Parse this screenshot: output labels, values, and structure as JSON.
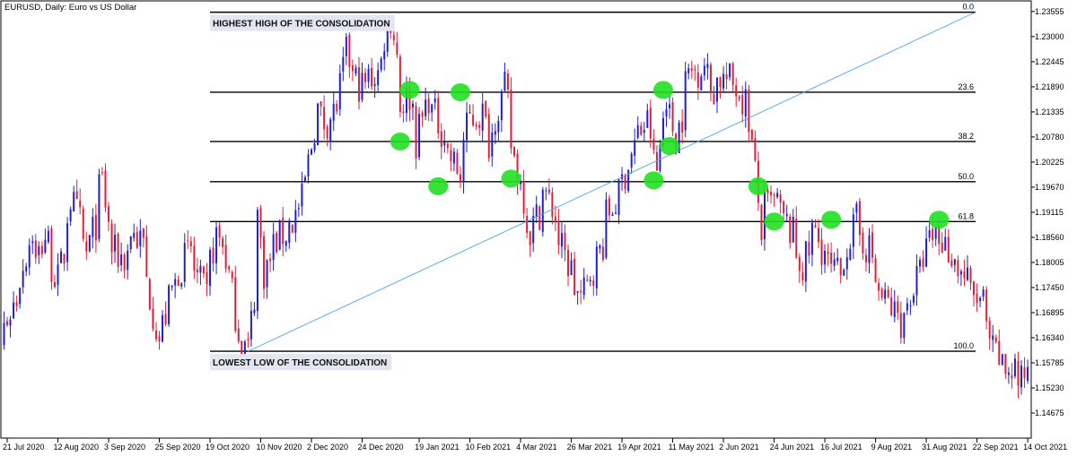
{
  "window": {
    "title": "EURUSD, Daily:  Euro vs US Dollar"
  },
  "chart_data": {
    "type": "candlestick",
    "symbol": "EURUSD",
    "timeframe": "Daily",
    "description": "Euro vs US Dollar",
    "ylim": [
      1.1412,
      1.2379
    ],
    "y_ticks": [
      "1.23555",
      "1.23000",
      "1.22445",
      "1.21890",
      "1.21335",
      "1.20780",
      "1.20225",
      "1.19670",
      "1.19115",
      "1.18560",
      "1.18005",
      "1.17450",
      "1.16895",
      "1.16340",
      "1.15785",
      "1.15230",
      "1.14675"
    ],
    "x_ticks": [
      "21 Jul 2020",
      "12 Aug 2020",
      "3 Sep 2020",
      "25 Sep 2020",
      "19 Oct 2020",
      "10 Nov 2020",
      "2 Dec 2020",
      "24 Dec 2020",
      "19 Jan 2021",
      "10 Feb 2021",
      "4 Mar 2021",
      "26 Mar 2021",
      "19 Apr 2021",
      "11 May 2021",
      "2 Jun 2021",
      "24 Jun 2021",
      "16 Jul 2021",
      "9 Aug 2021",
      "31 Aug 2021",
      "22 Sep 2021",
      "14 Oct 2021"
    ],
    "colors": {
      "bull": "#1f1fd6",
      "bear": "#e0203a",
      "fib_line": "#000000",
      "trend_line": "#4aa7e8",
      "marker": "#22e022",
      "callout_bg": "#e3e5f1"
    },
    "fibonacci": {
      "levels": [
        {
          "label": "0.0",
          "price": 1.2354
        },
        {
          "label": "23.6",
          "price": 1.2177
        },
        {
          "label": "38.2",
          "price": 1.2068
        },
        {
          "label": "50.0",
          "price": 1.1979
        },
        {
          "label": "61.8",
          "price": 1.1891
        },
        {
          "label": "100.0",
          "price": 1.1604
        }
      ],
      "start_date": "2020-10-19",
      "end_date": "2021-10-14"
    },
    "trend_line": {
      "from": {
        "date": "2020-11-04",
        "price": 1.1604
      },
      "to": {
        "date": "2021-10-13",
        "price": 1.2354
      }
    },
    "annotations": [
      {
        "text": "HIGHEST HIGH OF THE CONSOLIDATION",
        "date": "2020-10-19",
        "price": 1.2354,
        "placement": "below"
      },
      {
        "text": "LOWEST LOW OF THE CONSOLIDATION",
        "date": "2020-10-19",
        "price": 1.1604,
        "placement": "below"
      }
    ],
    "touch_points": [
      {
        "date": "2021-01-11",
        "price": 1.2068
      },
      {
        "date": "2021-01-14",
        "price": 1.2182
      },
      {
        "date": "2021-01-27",
        "price": 1.1969
      },
      {
        "date": "2021-02-05",
        "price": 1.2177
      },
      {
        "date": "2021-03-01",
        "price": 1.1986
      },
      {
        "date": "2021-05-03",
        "price": 1.1982
      },
      {
        "date": "2021-05-06",
        "price": 1.2182
      },
      {
        "date": "2021-05-10",
        "price": 1.2058
      },
      {
        "date": "2021-06-17",
        "price": 1.1969
      },
      {
        "date": "2021-06-24",
        "price": 1.1891
      },
      {
        "date": "2021-07-20",
        "price": 1.1895
      },
      {
        "date": "2021-09-06",
        "price": 1.1895
      }
    ],
    "price_path": [
      {
        "date": "2020-07-09",
        "price": 1.1473
      },
      {
        "date": "2020-07-10",
        "price": 1.153
      },
      {
        "date": "2020-07-15",
        "price": 1.158
      },
      {
        "date": "2020-07-20",
        "price": 1.166
      },
      {
        "date": "2020-07-27",
        "price": 1.177
      },
      {
        "date": "2020-07-31",
        "price": 1.187
      },
      {
        "date": "2020-08-03",
        "price": 1.18
      },
      {
        "date": "2020-08-06",
        "price": 1.186
      },
      {
        "date": "2020-08-12",
        "price": 1.176
      },
      {
        "date": "2020-08-18",
        "price": 1.194
      },
      {
        "date": "2020-08-25",
        "price": 1.182
      },
      {
        "date": "2020-09-01",
        "price": 1.198
      },
      {
        "date": "2020-09-04",
        "price": 1.183
      },
      {
        "date": "2020-09-10",
        "price": 1.181
      },
      {
        "date": "2020-09-14",
        "price": 1.187
      },
      {
        "date": "2020-09-18",
        "price": 1.184
      },
      {
        "date": "2020-09-21",
        "price": 1.176
      },
      {
        "date": "2020-09-25",
        "price": 1.163
      },
      {
        "date": "2020-09-28",
        "price": 1.166
      },
      {
        "date": "2020-10-01",
        "price": 1.174
      },
      {
        "date": "2020-10-09",
        "price": 1.183
      },
      {
        "date": "2020-10-16",
        "price": 1.172
      },
      {
        "date": "2020-10-21",
        "price": 1.186
      },
      {
        "date": "2020-10-26",
        "price": 1.181
      },
      {
        "date": "2020-10-30",
        "price": 1.165
      },
      {
        "date": "2020-11-04",
        "price": 1.161
      },
      {
        "date": "2020-11-09",
        "price": 1.191
      },
      {
        "date": "2020-11-11",
        "price": 1.178
      },
      {
        "date": "2020-11-17",
        "price": 1.185
      },
      {
        "date": "2020-11-24",
        "price": 1.189
      },
      {
        "date": "2020-11-30",
        "price": 1.198
      },
      {
        "date": "2020-12-04",
        "price": 1.214
      },
      {
        "date": "2020-12-08",
        "price": 1.211
      },
      {
        "date": "2020-12-14",
        "price": 1.215
      },
      {
        "date": "2020-12-17",
        "price": 1.226
      },
      {
        "date": "2020-12-21",
        "price": 1.221
      },
      {
        "date": "2020-12-24",
        "price": 1.219
      },
      {
        "date": "2020-12-31",
        "price": 1.222
      },
      {
        "date": "2021-01-06",
        "price": 1.234
      },
      {
        "date": "2021-01-11",
        "price": 1.215
      },
      {
        "date": "2021-01-14",
        "price": 1.217
      },
      {
        "date": "2021-01-18",
        "price": 1.207
      },
      {
        "date": "2021-01-22",
        "price": 1.217
      },
      {
        "date": "2021-01-27",
        "price": 1.211
      },
      {
        "date": "2021-02-02",
        "price": 1.203
      },
      {
        "date": "2021-02-05",
        "price": 1.199
      },
      {
        "date": "2021-02-10",
        "price": 1.212
      },
      {
        "date": "2021-02-16",
        "price": 1.213
      },
      {
        "date": "2021-02-18",
        "price": 1.207
      },
      {
        "date": "2021-02-25",
        "price": 1.218
      },
      {
        "date": "2021-03-01",
        "price": 1.206
      },
      {
        "date": "2021-03-05",
        "price": 1.195
      },
      {
        "date": "2021-03-09",
        "price": 1.187
      },
      {
        "date": "2021-03-15",
        "price": 1.196
      },
      {
        "date": "2021-03-18",
        "price": 1.192
      },
      {
        "date": "2021-03-24",
        "price": 1.181
      },
      {
        "date": "2021-03-31",
        "price": 1.172
      },
      {
        "date": "2021-04-06",
        "price": 1.179
      },
      {
        "date": "2021-04-12",
        "price": 1.19
      },
      {
        "date": "2021-04-19",
        "price": 1.198
      },
      {
        "date": "2021-04-23",
        "price": 1.206
      },
      {
        "date": "2021-04-29",
        "price": 1.211
      },
      {
        "date": "2021-05-04",
        "price": 1.2
      },
      {
        "date": "2021-05-07",
        "price": 1.218
      },
      {
        "date": "2021-05-12",
        "price": 1.208
      },
      {
        "date": "2021-05-18",
        "price": 1.222
      },
      {
        "date": "2021-05-25",
        "price": 1.224
      },
      {
        "date": "2021-05-27",
        "price": 1.218
      },
      {
        "date": "2021-06-01",
        "price": 1.221
      },
      {
        "date": "2021-06-08",
        "price": 1.219
      },
      {
        "date": "2021-06-14",
        "price": 1.212
      },
      {
        "date": "2021-06-18",
        "price": 1.187
      },
      {
        "date": "2021-06-21",
        "price": 1.192
      },
      {
        "date": "2021-06-25",
        "price": 1.1935
      },
      {
        "date": "2021-07-02",
        "price": 1.186
      },
      {
        "date": "2021-07-07",
        "price": 1.179
      },
      {
        "date": "2021-07-12",
        "price": 1.187
      },
      {
        "date": "2021-07-20",
        "price": 1.178
      },
      {
        "date": "2021-07-23",
        "price": 1.177
      },
      {
        "date": "2021-07-30",
        "price": 1.189
      },
      {
        "date": "2021-08-05",
        "price": 1.183
      },
      {
        "date": "2021-08-11",
        "price": 1.172
      },
      {
        "date": "2021-08-20",
        "price": 1.167
      },
      {
        "date": "2021-08-26",
        "price": 1.176
      },
      {
        "date": "2021-09-03",
        "price": 1.187
      },
      {
        "date": "2021-09-08",
        "price": 1.184
      },
      {
        "date": "2021-09-13",
        "price": 1.18
      },
      {
        "date": "2021-09-20",
        "price": 1.173
      },
      {
        "date": "2021-09-24",
        "price": 1.171
      },
      {
        "date": "2021-09-29",
        "price": 1.16
      },
      {
        "date": "2021-10-05",
        "price": 1.156
      },
      {
        "date": "2021-10-08",
        "price": 1.157
      },
      {
        "date": "2021-10-12",
        "price": 1.153
      },
      {
        "date": "2021-10-15",
        "price": 1.16
      },
      {
        "date": "2021-10-19",
        "price": 1.163
      }
    ]
  }
}
